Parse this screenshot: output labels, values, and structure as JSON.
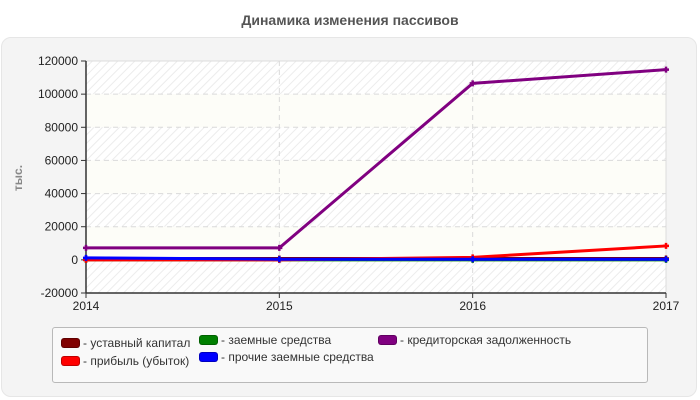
{
  "title": "Динамика изменения пассивов",
  "chart_data": {
    "type": "line",
    "title": "Динамика изменения пассивов",
    "xlabel": "",
    "ylabel": "тыс.",
    "x": [
      "2014",
      "2015",
      "2016",
      "2017"
    ],
    "ylim": [
      -20000,
      120000
    ],
    "yticks": [
      "120000",
      "100000",
      "80000",
      "60000",
      "40000",
      "20000",
      "0",
      "-20000"
    ],
    "grid": true,
    "legend_position": "bottom",
    "series": [
      {
        "name": "уставный капитал",
        "color": "#800000",
        "values": [
          800,
          800,
          800,
          800
        ]
      },
      {
        "name": "прибыль (убыток)",
        "color": "#ff0000",
        "values": [
          0,
          0,
          1500,
          8400
        ]
      },
      {
        "name": "заемные средства",
        "color": "#008000",
        "values": [
          0,
          0,
          0,
          0
        ]
      },
      {
        "name": "прочие заемные средства",
        "color": "#0000ff",
        "values": [
          1200,
          400,
          400,
          400
        ]
      },
      {
        "name": "кредиторская задолженность",
        "color": "#800080",
        "values": [
          7200,
          7200,
          106500,
          114800
        ]
      }
    ]
  },
  "legend": [
    {
      "label": "- уставный капитал",
      "color": "#800000"
    },
    {
      "label": "- прибыль (убыток)",
      "color": "#ff0000"
    },
    {
      "label": "- заемные средства",
      "color": "#008000"
    },
    {
      "label": "- прочие заемные средства",
      "color": "#0000ff"
    },
    {
      "label": "- кредиторская задолженность",
      "color": "#800080"
    }
  ]
}
